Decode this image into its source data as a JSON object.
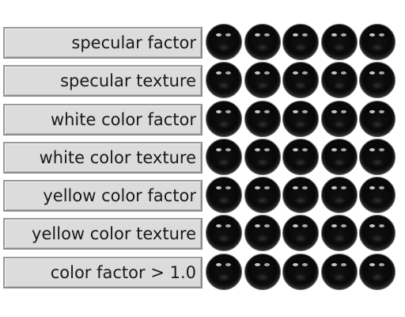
{
  "labels": [
    "specular factor",
    "specular texture",
    "white color factor",
    "white color texture",
    "yellow color factor",
    "yellow color texture",
    "color factor > 1.0"
  ],
  "grid": {
    "rows": 7,
    "columns": 5,
    "sphere_color": "#0a0a0a",
    "highlight_color": "#e6e6e6"
  }
}
